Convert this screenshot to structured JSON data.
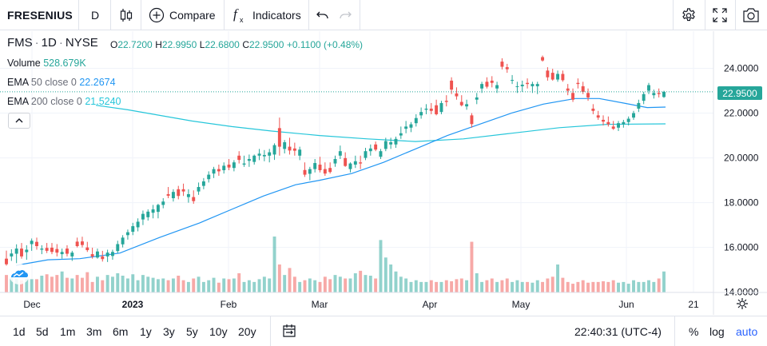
{
  "toolbar": {
    "symbol": "FRESENIUS",
    "interval": "D",
    "compare_label": "Compare",
    "indicators_label": "Indicators"
  },
  "legend": {
    "ticker": "FMS",
    "interval": "1D",
    "exchange": "NYSE",
    "open_label": "O",
    "open": "22.7200",
    "high_label": "H",
    "high": "22.9950",
    "low_label": "L",
    "low": "22.6800",
    "close_label": "C",
    "close": "22.9500",
    "change": "+0.1100 (+0.48%)",
    "volume_label": "Volume",
    "volume": "528.679K",
    "ema50_label": "EMA",
    "ema50_params": "50 close 0",
    "ema50_value": "22.2674",
    "ema200_label": "EMA",
    "ema200_params": "200 close 0",
    "ema200_value": "21.5240"
  },
  "price_badge": "22.9500",
  "colors": {
    "up": "#26a69a",
    "down": "#ef5350",
    "ema50": "#2196f3",
    "ema200": "#26c6da",
    "accent": "#2962ff"
  },
  "icons": [
    "candles-icon",
    "plus-circle-icon",
    "fx-icon",
    "undo-icon",
    "redo-icon",
    "gear-icon",
    "fullscreen-icon",
    "camera-icon",
    "chevron-up-icon",
    "calendar-range-icon",
    "tradingview-logo-icon"
  ],
  "chart_data": {
    "type": "candlestick",
    "y_ticks": [
      "24.0000",
      "22.0000",
      "20.0000",
      "18.0000",
      "16.0000",
      "14.0000"
    ],
    "x_ticks": [
      "Dec",
      "2023",
      "Feb",
      "Mar",
      "Apr",
      "May",
      "Jun",
      "21"
    ],
    "ylim": [
      13.99,
      25.66
    ],
    "candles": [
      {
        "o": 15.5,
        "h": 15.86,
        "l": 15.19,
        "c": 15.25
      },
      {
        "o": 15.6,
        "h": 15.92,
        "l": 15.4,
        "c": 15.73
      },
      {
        "o": 15.72,
        "h": 16.14,
        "l": 15.3,
        "c": 15.95
      },
      {
        "o": 15.95,
        "h": 16.2,
        "l": 15.5,
        "c": 15.6
      },
      {
        "o": 15.79,
        "h": 16.1,
        "l": 15.45,
        "c": 15.9
      },
      {
        "o": 16.15,
        "h": 16.4,
        "l": 15.85,
        "c": 16.3
      },
      {
        "o": 16.25,
        "h": 16.44,
        "l": 15.9,
        "c": 16.06
      },
      {
        "o": 15.9,
        "h": 16.1,
        "l": 15.7,
        "c": 15.95
      },
      {
        "o": 15.98,
        "h": 16.2,
        "l": 15.75,
        "c": 15.85
      },
      {
        "o": 15.99,
        "h": 16.2,
        "l": 15.7,
        "c": 15.8
      },
      {
        "o": 15.93,
        "h": 16.15,
        "l": 15.6,
        "c": 15.77
      },
      {
        "o": 15.7,
        "h": 15.95,
        "l": 15.5,
        "c": 15.8
      },
      {
        "o": 15.95,
        "h": 16.1,
        "l": 15.6,
        "c": 15.72
      },
      {
        "o": 15.6,
        "h": 15.85,
        "l": 15.4,
        "c": 15.77
      },
      {
        "o": 16.26,
        "h": 16.44,
        "l": 16.0,
        "c": 16.06
      },
      {
        "o": 16.27,
        "h": 16.48,
        "l": 16.0,
        "c": 16.11
      },
      {
        "o": 16.0,
        "h": 16.25,
        "l": 15.8,
        "c": 15.88
      },
      {
        "o": 15.7,
        "h": 15.99,
        "l": 15.5,
        "c": 15.6
      },
      {
        "o": 15.55,
        "h": 15.95,
        "l": 15.5,
        "c": 15.82
      },
      {
        "o": 15.6,
        "h": 15.85,
        "l": 15.37,
        "c": 15.48
      },
      {
        "o": 15.6,
        "h": 15.9,
        "l": 15.35,
        "c": 15.77
      },
      {
        "o": 15.62,
        "h": 15.9,
        "l": 15.45,
        "c": 15.8
      },
      {
        "o": 15.84,
        "h": 16.3,
        "l": 15.75,
        "c": 16.15
      },
      {
        "o": 16.14,
        "h": 16.55,
        "l": 16.0,
        "c": 16.44
      },
      {
        "o": 16.55,
        "h": 16.8,
        "l": 16.35,
        "c": 16.68
      },
      {
        "o": 16.7,
        "h": 17.1,
        "l": 16.55,
        "c": 16.95
      },
      {
        "o": 16.9,
        "h": 17.3,
        "l": 16.72,
        "c": 17.15
      },
      {
        "o": 17.25,
        "h": 17.65,
        "l": 17.0,
        "c": 17.5
      },
      {
        "o": 17.35,
        "h": 17.7,
        "l": 17.2,
        "c": 17.6
      },
      {
        "o": 17.55,
        "h": 17.9,
        "l": 17.3,
        "c": 17.7
      },
      {
        "o": 17.59,
        "h": 17.95,
        "l": 17.3,
        "c": 17.9
      },
      {
        "o": 17.9,
        "h": 18.2,
        "l": 17.75,
        "c": 18.05
      },
      {
        "o": 18.38,
        "h": 18.7,
        "l": 18.2,
        "c": 18.31
      },
      {
        "o": 18.2,
        "h": 18.6,
        "l": 18.05,
        "c": 18.48
      },
      {
        "o": 18.6,
        "h": 18.75,
        "l": 18.15,
        "c": 18.3
      },
      {
        "o": 18.6,
        "h": 18.85,
        "l": 18.3,
        "c": 18.5
      },
      {
        "o": 18.25,
        "h": 18.6,
        "l": 18.0,
        "c": 18.38
      },
      {
        "o": 18.25,
        "h": 18.55,
        "l": 17.95,
        "c": 18.07
      },
      {
        "o": 18.5,
        "h": 18.9,
        "l": 18.35,
        "c": 18.7
      },
      {
        "o": 18.75,
        "h": 19.1,
        "l": 18.6,
        "c": 18.95
      },
      {
        "o": 19.05,
        "h": 19.4,
        "l": 18.9,
        "c": 19.25
      },
      {
        "o": 19.3,
        "h": 19.6,
        "l": 19.1,
        "c": 19.5
      },
      {
        "o": 19.5,
        "h": 19.7,
        "l": 19.2,
        "c": 19.4
      },
      {
        "o": 19.45,
        "h": 19.8,
        "l": 19.3,
        "c": 19.65
      },
      {
        "o": 19.7,
        "h": 19.95,
        "l": 19.45,
        "c": 19.57
      },
      {
        "o": 19.55,
        "h": 19.9,
        "l": 19.4,
        "c": 19.8
      },
      {
        "o": 20.1,
        "h": 20.3,
        "l": 19.75,
        "c": 19.91
      },
      {
        "o": 19.7,
        "h": 20.1,
        "l": 19.6,
        "c": 19.75
      },
      {
        "o": 19.87,
        "h": 20.15,
        "l": 19.6,
        "c": 19.95
      },
      {
        "o": 19.82,
        "h": 20.15,
        "l": 19.7,
        "c": 20.1
      },
      {
        "o": 20.1,
        "h": 20.4,
        "l": 19.9,
        "c": 20.19
      },
      {
        "o": 20.07,
        "h": 20.35,
        "l": 19.85,
        "c": 20.13
      },
      {
        "o": 20.1,
        "h": 20.4,
        "l": 19.8,
        "c": 20.25
      },
      {
        "o": 20.15,
        "h": 20.65,
        "l": 19.91,
        "c": 20.57
      },
      {
        "o": 21.33,
        "h": 21.8,
        "l": 20.1,
        "c": 20.5
      },
      {
        "o": 20.4,
        "h": 20.8,
        "l": 20.2,
        "c": 20.7
      },
      {
        "o": 20.5,
        "h": 20.9,
        "l": 20.15,
        "c": 20.33
      },
      {
        "o": 20.42,
        "h": 20.68,
        "l": 20.1,
        "c": 20.32
      },
      {
        "o": 20.1,
        "h": 20.5,
        "l": 19.9,
        "c": 20.37
      },
      {
        "o": 19.46,
        "h": 19.8,
        "l": 19.15,
        "c": 19.25
      },
      {
        "o": 19.29,
        "h": 19.6,
        "l": 19.0,
        "c": 19.5
      },
      {
        "o": 19.5,
        "h": 19.95,
        "l": 19.35,
        "c": 19.77
      },
      {
        "o": 19.7,
        "h": 20.05,
        "l": 19.35,
        "c": 19.45
      },
      {
        "o": 19.5,
        "h": 19.8,
        "l": 19.2,
        "c": 19.3
      },
      {
        "o": 19.55,
        "h": 19.8,
        "l": 19.3,
        "c": 19.37
      },
      {
        "o": 19.75,
        "h": 20.1,
        "l": 19.6,
        "c": 19.95
      },
      {
        "o": 20.1,
        "h": 20.55,
        "l": 19.95,
        "c": 20.3
      },
      {
        "o": 19.99,
        "h": 20.25,
        "l": 19.6,
        "c": 19.64
      },
      {
        "o": 19.5,
        "h": 19.8,
        "l": 19.35,
        "c": 19.75
      },
      {
        "o": 19.7,
        "h": 20.1,
        "l": 19.55,
        "c": 19.85
      },
      {
        "o": 19.8,
        "h": 20.1,
        "l": 19.5,
        "c": 19.75
      },
      {
        "o": 20.0,
        "h": 20.45,
        "l": 19.9,
        "c": 20.3
      },
      {
        "o": 20.3,
        "h": 20.6,
        "l": 20.1,
        "c": 20.42
      },
      {
        "o": 20.6,
        "h": 20.73,
        "l": 20.3,
        "c": 20.37
      },
      {
        "o": 20.05,
        "h": 20.4,
        "l": 19.95,
        "c": 20.3
      },
      {
        "o": 20.4,
        "h": 20.9,
        "l": 20.3,
        "c": 20.75
      },
      {
        "o": 20.6,
        "h": 20.9,
        "l": 20.4,
        "c": 20.7
      },
      {
        "o": 20.6,
        "h": 20.95,
        "l": 20.45,
        "c": 20.85
      },
      {
        "o": 21.0,
        "h": 21.4,
        "l": 20.85,
        "c": 21.1
      },
      {
        "o": 21.3,
        "h": 21.65,
        "l": 21.1,
        "c": 21.4
      },
      {
        "o": 21.35,
        "h": 21.6,
        "l": 21.15,
        "c": 21.5
      },
      {
        "o": 21.55,
        "h": 21.95,
        "l": 21.4,
        "c": 21.78
      },
      {
        "o": 21.9,
        "h": 22.25,
        "l": 21.75,
        "c": 22.05
      },
      {
        "o": 22.15,
        "h": 22.4,
        "l": 21.95,
        "c": 22.2
      },
      {
        "o": 22.2,
        "h": 22.45,
        "l": 21.95,
        "c": 22.1
      },
      {
        "o": 22.35,
        "h": 22.6,
        "l": 21.9,
        "c": 21.95
      },
      {
        "o": 22.05,
        "h": 22.55,
        "l": 21.95,
        "c": 22.45
      },
      {
        "o": 22.55,
        "h": 22.8,
        "l": 22.3,
        "c": 22.5
      },
      {
        "o": 23.45,
        "h": 23.6,
        "l": 22.85,
        "c": 23.05
      },
      {
        "o": 22.88,
        "h": 23.15,
        "l": 22.6,
        "c": 22.75
      },
      {
        "o": 22.5,
        "h": 22.8,
        "l": 22.3,
        "c": 22.35
      },
      {
        "o": 22.3,
        "h": 22.6,
        "l": 22.15,
        "c": 22.4
      },
      {
        "o": 21.9,
        "h": 22.0,
        "l": 21.35,
        "c": 21.51
      },
      {
        "o": 22.6,
        "h": 22.9,
        "l": 22.4,
        "c": 22.7
      },
      {
        "o": 23.1,
        "h": 23.4,
        "l": 22.9,
        "c": 23.3
      },
      {
        "o": 23.4,
        "h": 23.6,
        "l": 23.1,
        "c": 23.18
      },
      {
        "o": 23.45,
        "h": 23.65,
        "l": 23.15,
        "c": 23.35
      },
      {
        "o": 23.1,
        "h": 23.4,
        "l": 22.9,
        "c": 23.25
      },
      {
        "o": 24.3,
        "h": 24.45,
        "l": 23.95,
        "c": 24.07
      },
      {
        "o": 24.05,
        "h": 24.2,
        "l": 23.8,
        "c": 23.96
      },
      {
        "o": 23.45,
        "h": 23.7,
        "l": 23.3,
        "c": 23.48
      },
      {
        "o": 23.2,
        "h": 23.4,
        "l": 22.9,
        "c": 23.2
      },
      {
        "o": 23.2,
        "h": 23.45,
        "l": 22.95,
        "c": 23.27
      },
      {
        "o": 23.35,
        "h": 23.55,
        "l": 23.1,
        "c": 23.3
      },
      {
        "o": 23.2,
        "h": 23.4,
        "l": 22.9,
        "c": 23.3
      },
      {
        "o": 23.2,
        "h": 23.4,
        "l": 22.85,
        "c": 23.3
      },
      {
        "o": 24.5,
        "h": 24.57,
        "l": 24.3,
        "c": 24.35
      },
      {
        "o": 23.9,
        "h": 24.05,
        "l": 23.45,
        "c": 23.6
      },
      {
        "o": 23.8,
        "h": 23.98,
        "l": 23.45,
        "c": 23.5
      },
      {
        "o": 23.5,
        "h": 23.9,
        "l": 23.4,
        "c": 23.75
      },
      {
        "o": 23.75,
        "h": 23.9,
        "l": 23.4,
        "c": 23.47
      },
      {
        "o": 23.1,
        "h": 23.3,
        "l": 22.8,
        "c": 23.0
      },
      {
        "o": 22.9,
        "h": 23.1,
        "l": 22.5,
        "c": 22.6
      },
      {
        "o": 23.35,
        "h": 23.55,
        "l": 23.1,
        "c": 23.3
      },
      {
        "o": 23.2,
        "h": 23.4,
        "l": 22.85,
        "c": 22.95
      },
      {
        "o": 22.9,
        "h": 23.1,
        "l": 22.55,
        "c": 22.7
      },
      {
        "o": 22.2,
        "h": 22.4,
        "l": 21.95,
        "c": 22.1
      },
      {
        "o": 21.9,
        "h": 22.1,
        "l": 21.7,
        "c": 21.8
      },
      {
        "o": 21.7,
        "h": 21.9,
        "l": 21.45,
        "c": 21.62
      },
      {
        "o": 21.6,
        "h": 21.85,
        "l": 21.4,
        "c": 21.5
      },
      {
        "o": 21.4,
        "h": 21.65,
        "l": 21.25,
        "c": 21.3
      },
      {
        "o": 21.35,
        "h": 21.65,
        "l": 21.2,
        "c": 21.55
      },
      {
        "o": 21.5,
        "h": 21.7,
        "l": 21.35,
        "c": 21.6
      },
      {
        "o": 21.6,
        "h": 21.85,
        "l": 21.45,
        "c": 21.75
      },
      {
        "o": 21.8,
        "h": 22.1,
        "l": 21.7,
        "c": 22.0
      },
      {
        "o": 22.2,
        "h": 22.6,
        "l": 22.05,
        "c": 22.45
      },
      {
        "o": 22.55,
        "h": 22.95,
        "l": 22.4,
        "c": 22.85
      },
      {
        "o": 23.0,
        "h": 23.35,
        "l": 22.85,
        "c": 23.25
      },
      {
        "o": 22.8,
        "h": 23.05,
        "l": 22.65,
        "c": 22.9
      },
      {
        "o": 22.9,
        "h": 23.1,
        "l": 22.7,
        "c": 22.85
      },
      {
        "o": 22.72,
        "h": 22.995,
        "l": 22.68,
        "c": 22.95
      }
    ],
    "volume": [
      0.5,
      0.45,
      0.4,
      0.35,
      0.4,
      0.38,
      0.38,
      0.48,
      0.52,
      0.45,
      0.5,
      0.6,
      0.42,
      0.4,
      0.5,
      0.42,
      0.58,
      0.3,
      0.45,
      0.35,
      0.5,
      0.45,
      0.55,
      0.48,
      0.4,
      0.52,
      0.35,
      0.5,
      0.45,
      0.42,
      0.38,
      0.4,
      0.35,
      0.4,
      0.48,
      0.35,
      0.3,
      0.4,
      0.45,
      0.3,
      0.35,
      0.42,
      0.28,
      0.4,
      0.38,
      0.4,
      0.55,
      0.3,
      0.35,
      0.3,
      0.38,
      0.45,
      0.4,
      1.6,
      0.8,
      0.5,
      0.7,
      0.45,
      0.3,
      0.35,
      0.4,
      0.35,
      0.3,
      0.45,
      0.38,
      0.5,
      0.45,
      0.4,
      0.4,
      0.55,
      0.62,
      0.5,
      0.48,
      0.4,
      1.5,
      1.0,
      0.8,
      0.6,
      0.45,
      0.4,
      0.3,
      0.35,
      0.3,
      0.3,
      0.35,
      0.3,
      0.3,
      0.35,
      0.32,
      0.38,
      0.4,
      0.35,
      1.45,
      0.55,
      0.3,
      0.35,
      0.4,
      0.3,
      0.35,
      0.4,
      0.3,
      0.35,
      0.3,
      0.3,
      0.28,
      0.35,
      0.3,
      0.4,
      0.45,
      0.8,
      0.42,
      0.3,
      0.25,
      0.3,
      0.35,
      0.28,
      0.3,
      0.3,
      0.32,
      0.3,
      0.35,
      0.28,
      0.3,
      0.25,
      0.35,
      0.3,
      0.3,
      0.35,
      0.3,
      0.4,
      0.6,
      0.5,
      0.35
    ],
    "ema50": [
      [
        20,
        15.2
      ],
      [
        60,
        15.45
      ],
      [
        100,
        15.5
      ],
      [
        150,
        15.75
      ],
      [
        200,
        16.45
      ],
      [
        250,
        17.1
      ],
      [
        290,
        17.7
      ],
      [
        330,
        18.3
      ],
      [
        370,
        18.8
      ],
      [
        400,
        19.0
      ],
      [
        440,
        19.3
      ],
      [
        480,
        19.8
      ],
      [
        520,
        20.4
      ],
      [
        560,
        21.0
      ],
      [
        600,
        21.5
      ],
      [
        640,
        22.0
      ],
      [
        680,
        22.4
      ],
      [
        720,
        22.65
      ],
      [
        750,
        22.65
      ],
      [
        780,
        22.45
      ],
      [
        810,
        22.25
      ],
      [
        833,
        22.27
      ]
    ],
    "ema200": [
      [
        120,
        22.35
      ],
      [
        160,
        22.15
      ],
      [
        200,
        21.9
      ],
      [
        240,
        21.65
      ],
      [
        290,
        21.4
      ],
      [
        340,
        21.2
      ],
      [
        400,
        21.0
      ],
      [
        460,
        20.85
      ],
      [
        520,
        20.73
      ],
      [
        580,
        20.85
      ],
      [
        640,
        21.1
      ],
      [
        700,
        21.35
      ],
      [
        760,
        21.5
      ],
      [
        833,
        21.52
      ]
    ]
  },
  "bottom": {
    "ranges": [
      "1d",
      "5d",
      "1m",
      "3m",
      "6m",
      "1y",
      "3y",
      "5y",
      "10y",
      "20y"
    ],
    "time": "22:40:31 (UTC-4)",
    "pct": "%",
    "log": "log",
    "auto": "auto"
  }
}
